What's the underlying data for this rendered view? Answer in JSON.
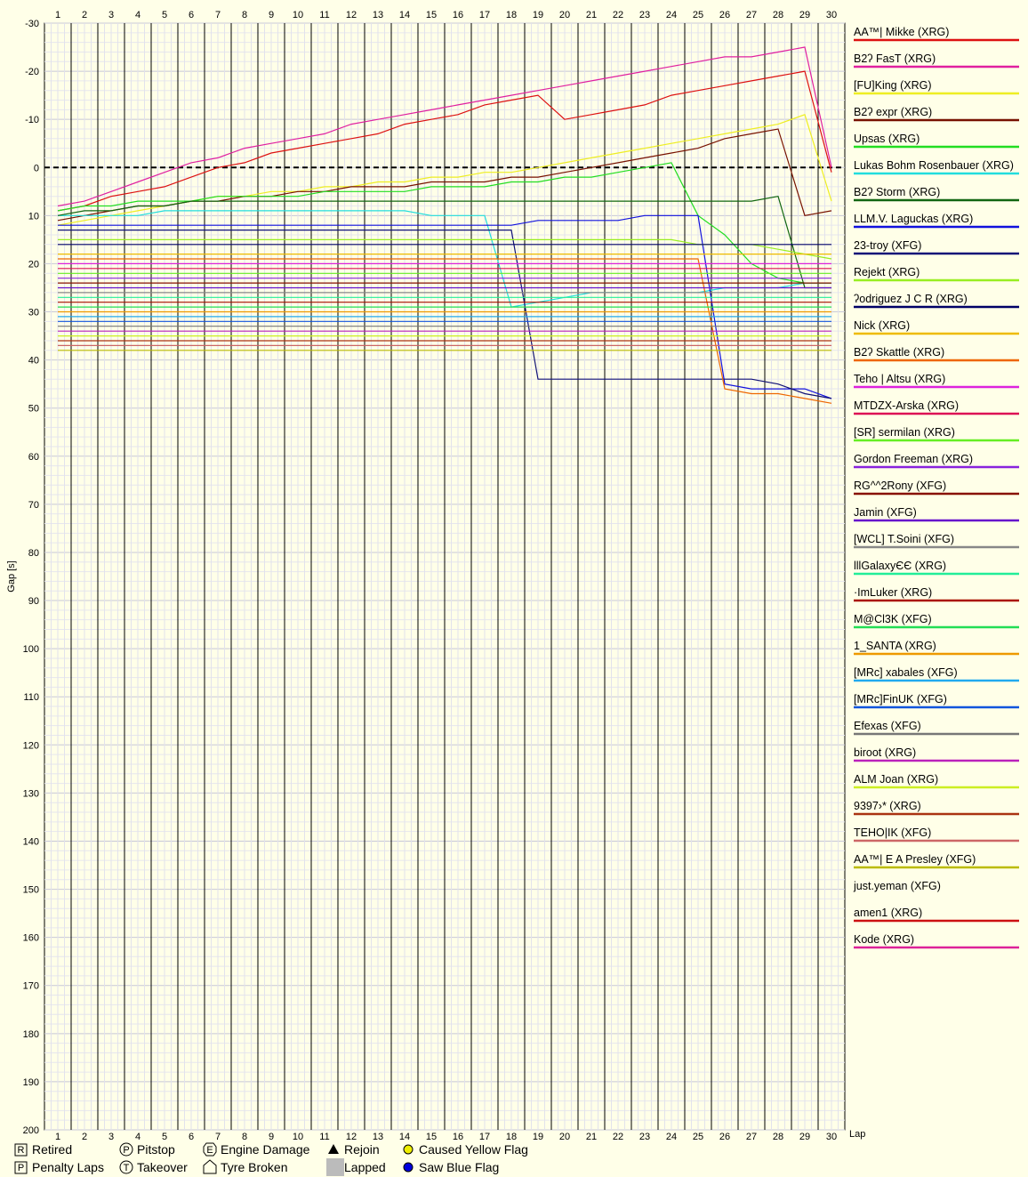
{
  "chart_data": {
    "type": "line",
    "ylabel": "Gap [s]",
    "xlabel": "Lap",
    "x_ticks": [
      "1",
      "2",
      "3",
      "4",
      "5",
      "6",
      "7",
      "8",
      "9",
      "10",
      "11",
      "12",
      "13",
      "14",
      "15",
      "16",
      "17",
      "18",
      "19",
      "20",
      "21",
      "22",
      "23",
      "24",
      "25",
      "26",
      "27",
      "28",
      "29",
      "30"
    ],
    "y_ticks": [
      "-30",
      "-20",
      "-10",
      "0",
      "10",
      "20",
      "30",
      "40",
      "50",
      "60",
      "70",
      "80",
      "90",
      "100",
      "110",
      "120",
      "130",
      "140",
      "150",
      "160",
      "170",
      "180",
      "190",
      "200"
    ],
    "ylim": [
      -30,
      200
    ],
    "xlim": [
      1,
      30
    ],
    "y_inverted": true,
    "grid": true,
    "legend_position": "right",
    "zero_line": "dashed",
    "series": [
      {
        "name": "AA™| Mikke (XRG)",
        "color": "#dd1111",
        "values": [
          9,
          8,
          6,
          5,
          4,
          2,
          0,
          -1,
          -3,
          -4,
          -5,
          -6,
          -7,
          -9,
          -10,
          -11,
          -13,
          -14,
          -15,
          -10,
          -11,
          -12,
          -13,
          -15,
          -16,
          -17,
          -18,
          -19,
          -20,
          1
        ]
      },
      {
        "name": "B2ʔ FasT (XRG)",
        "color": "#e020a0",
        "values": [
          8,
          7,
          5,
          3,
          1,
          -1,
          -2,
          -4,
          -5,
          -6,
          -7,
          -9,
          -10,
          -11,
          -12,
          -13,
          -14,
          -15,
          -16,
          -17,
          -18,
          -19,
          -20,
          -21,
          -22,
          -23,
          -23,
          -24,
          -25,
          0
        ]
      },
      {
        "name": "[FU]King (XRG)",
        "color": "#eeee22",
        "values": [
          12,
          11,
          10,
          9,
          8,
          7,
          6,
          6,
          5,
          5,
          4,
          4,
          3,
          3,
          2,
          2,
          1,
          1,
          0,
          -1,
          -2,
          -3,
          -4,
          -5,
          -6,
          -7,
          -8,
          -9,
          -11,
          7
        ]
      },
      {
        "name": "B2ʔ expr (XRG)",
        "color": "#771100",
        "values": [
          11,
          10,
          9,
          8,
          8,
          7,
          7,
          6,
          6,
          5,
          5,
          4,
          4,
          4,
          3,
          3,
          3,
          2,
          2,
          1,
          0,
          -1,
          -2,
          -3,
          -4,
          -6,
          -7,
          -8,
          10,
          9
        ]
      },
      {
        "name": "Upsas (XRG)",
        "color": "#22dd22",
        "values": [
          9,
          8,
          8,
          7,
          7,
          7,
          6,
          6,
          6,
          6,
          5,
          5,
          5,
          5,
          4,
          4,
          4,
          3,
          3,
          2,
          2,
          1,
          0,
          -1,
          10,
          14,
          20,
          23,
          24,
          24
        ]
      },
      {
        "name": "Lukas Bohm Rosenbauer (XRG)",
        "color": "#22dddd",
        "values": [
          10,
          10,
          10,
          10,
          9,
          9,
          9,
          9,
          9,
          9,
          9,
          9,
          9,
          9,
          10,
          10,
          10,
          29,
          28,
          27,
          26,
          26,
          26,
          26,
          26,
          25,
          25,
          25,
          24,
          24
        ]
      },
      {
        "name": "B2ʔ Storm (XRG)",
        "color": "#116611",
        "values": [
          10,
          9,
          9,
          8,
          8,
          7,
          7,
          7,
          7,
          7,
          7,
          7,
          7,
          7,
          7,
          7,
          7,
          7,
          7,
          7,
          7,
          7,
          7,
          7,
          7,
          7,
          7,
          6,
          25,
          25
        ]
      },
      {
        "name": "LLM.V. Laguckas (XRG)",
        "color": "#1111dd",
        "values": [
          12,
          12,
          12,
          12,
          12,
          12,
          12,
          12,
          12,
          12,
          12,
          12,
          12,
          12,
          12,
          12,
          12,
          12,
          11,
          11,
          11,
          11,
          10,
          10,
          10,
          45,
          46,
          46,
          46,
          48
        ]
      },
      {
        "name": "23-troy (XFG)",
        "color": "#111177",
        "values": [
          13,
          13,
          13,
          13,
          13,
          13,
          13,
          13,
          13,
          13,
          13,
          13,
          13,
          13,
          13,
          13,
          13,
          13,
          44,
          44,
          44,
          44,
          44,
          44,
          44,
          44,
          44,
          45,
          47,
          48
        ]
      },
      {
        "name": "Rejekt (XRG)",
        "color": "#99ee22",
        "values": [
          15,
          15,
          15,
          15,
          15,
          15,
          15,
          15,
          15,
          15,
          15,
          15,
          15,
          15,
          15,
          15,
          15,
          15,
          15,
          15,
          15,
          15,
          15,
          15,
          16,
          16,
          16,
          17,
          18,
          19
        ]
      },
      {
        "name": "ʔodriguez  J C R  (XRG)",
        "color": "#000066",
        "values": [
          16,
          16,
          16,
          16,
          16,
          16,
          16,
          16,
          16,
          16,
          16,
          16,
          16,
          16,
          16,
          16,
          16,
          16,
          16,
          16,
          16,
          16,
          16,
          16,
          16,
          16,
          16,
          16,
          16,
          16
        ]
      },
      {
        "name": "Nick (XRG)",
        "color": "#eebb00",
        "values": [
          18,
          18,
          18,
          18,
          18,
          18,
          18,
          18,
          18,
          18,
          18,
          18,
          18,
          18,
          18,
          18,
          18,
          18,
          18,
          18,
          18,
          18,
          18,
          18,
          18,
          18,
          18,
          18,
          18,
          18
        ]
      },
      {
        "name": "B2ʔ Skattle (XRG)",
        "color": "#ee6600",
        "values": [
          19,
          19,
          19,
          19,
          19,
          19,
          19,
          19,
          19,
          19,
          19,
          19,
          19,
          19,
          19,
          19,
          19,
          19,
          19,
          19,
          19,
          19,
          19,
          19,
          19,
          46,
          47,
          47,
          48,
          49
        ]
      },
      {
        "name": "Teho | Altsu (XRG)",
        "color": "#dd22dd",
        "values": [
          20,
          20,
          20,
          20,
          20,
          20,
          20,
          20,
          20,
          20,
          20,
          20,
          20,
          20,
          20,
          20,
          20,
          20,
          20,
          20,
          20,
          20,
          20,
          20,
          20,
          20,
          20,
          20,
          20,
          20
        ]
      },
      {
        "name": "MTDZX-Arska (XRG)",
        "color": "#dd1155",
        "values": [
          21,
          21,
          21,
          21,
          21,
          21,
          21,
          21,
          21,
          21,
          21,
          21,
          21,
          21,
          21,
          21,
          21,
          21,
          21,
          21,
          21,
          21,
          21,
          21,
          21,
          21,
          21,
          21,
          21,
          21
        ]
      },
      {
        "name": "[SR] sermilan (XRG)",
        "color": "#66ee22",
        "values": [
          22,
          22,
          22,
          22,
          22,
          22,
          22,
          22,
          22,
          22,
          22,
          22,
          22,
          22,
          22,
          22,
          22,
          22,
          22,
          22,
          22,
          22,
          22,
          22,
          22,
          22,
          22,
          22,
          22,
          22
        ]
      },
      {
        "name": "Gordon Freeman (XRG)",
        "color": "#8822dd",
        "values": [
          23,
          23,
          23,
          23,
          23,
          23,
          23,
          23,
          23,
          23,
          23,
          23,
          23,
          23,
          23,
          23,
          23,
          23,
          23,
          23,
          23,
          23,
          23,
          23,
          23,
          23,
          23,
          23,
          23,
          23
        ]
      },
      {
        "name": "RG^^2Rony (XFG)",
        "color": "#881100",
        "values": [
          24,
          24,
          24,
          24,
          24,
          24,
          24,
          24,
          24,
          24,
          24,
          24,
          24,
          24,
          24,
          24,
          24,
          24,
          24,
          24,
          24,
          24,
          24,
          24,
          24,
          24,
          24,
          24,
          24,
          24
        ]
      },
      {
        "name": "Jamin (XFG)",
        "color": "#6611cc",
        "values": [
          25,
          25,
          25,
          25,
          25,
          25,
          25,
          25,
          25,
          25,
          25,
          25,
          25,
          25,
          25,
          25,
          25,
          25,
          25,
          25,
          25,
          25,
          25,
          25,
          25,
          25,
          25,
          25,
          25,
          25
        ]
      },
      {
        "name": "[WCL] T.Soini (XFG)",
        "color": "#888888",
        "values": [
          26,
          26,
          26,
          26,
          26,
          26,
          26,
          26,
          26,
          26,
          26,
          26,
          26,
          26,
          26,
          26,
          26,
          26,
          26,
          26,
          26,
          26,
          26,
          26,
          26,
          26,
          26,
          26,
          26,
          26
        ]
      },
      {
        "name": "lllGalaxyЄЄ (XRG)",
        "color": "#22ee99",
        "values": [
          27,
          27,
          27,
          27,
          27,
          27,
          27,
          27,
          27,
          27,
          27,
          27,
          27,
          27,
          27,
          27,
          27,
          27,
          27,
          27,
          27,
          27,
          27,
          27,
          27,
          27,
          27,
          27,
          27,
          27
        ]
      },
      {
        "name": "·ImLuker (XRG)",
        "color": "#aa1100",
        "values": [
          28,
          28,
          28,
          28,
          28,
          28,
          28,
          28,
          28,
          28,
          28,
          28,
          28,
          28,
          28,
          28,
          28,
          28,
          28,
          28,
          28,
          28,
          28,
          28,
          28,
          28,
          28,
          28,
          28,
          28
        ]
      },
      {
        "name": "M@Cl3K (XFG)",
        "color": "#22dd55",
        "values": [
          29,
          29,
          29,
          29,
          29,
          29,
          29,
          29,
          29,
          29,
          29,
          29,
          29,
          29,
          29,
          29,
          29,
          29,
          29,
          29,
          29,
          29,
          29,
          29,
          29,
          29,
          29,
          29,
          29,
          29
        ]
      },
      {
        "name": "1_SANTA (XRG)",
        "color": "#ee9900",
        "values": [
          30,
          30,
          30,
          30,
          30,
          30,
          30,
          30,
          30,
          30,
          30,
          30,
          30,
          30,
          30,
          30,
          30,
          30,
          30,
          30,
          30,
          30,
          30,
          30,
          30,
          30,
          30,
          30,
          30,
          30
        ]
      },
      {
        "name": "[MRc] xabales (XFG)",
        "color": "#22aaee",
        "values": [
          31,
          31,
          31,
          31,
          31,
          31,
          31,
          31,
          31,
          31,
          31,
          31,
          31,
          31,
          31,
          31,
          31,
          31,
          31,
          31,
          31,
          31,
          31,
          31,
          31,
          31,
          31,
          31,
          31,
          31
        ]
      },
      {
        "name": "[MRc]FinUK (XFG)",
        "color": "#1155dd",
        "values": [
          32,
          32,
          32,
          32,
          32,
          32,
          32,
          32,
          32,
          32,
          32,
          32,
          32,
          32,
          32,
          32,
          32,
          32,
          32,
          32,
          32,
          32,
          32,
          32,
          32,
          32,
          32,
          32,
          32,
          32
        ]
      },
      {
        "name": "Efexas (XFG)",
        "color": "#777777",
        "values": [
          33,
          33,
          33,
          33,
          33,
          33,
          33,
          33,
          33,
          33,
          33,
          33,
          33,
          33,
          33,
          33,
          33,
          33,
          33,
          33,
          33,
          33,
          33,
          33,
          33,
          33,
          33,
          33,
          33,
          33
        ]
      },
      {
        "name": "biroot (XRG)",
        "color": "#bb22bb",
        "values": [
          34,
          34,
          34,
          34,
          34,
          34,
          34,
          34,
          34,
          34,
          34,
          34,
          34,
          34,
          34,
          34,
          34,
          34,
          34,
          34,
          34,
          34,
          34,
          34,
          34,
          34,
          34,
          34,
          34,
          34
        ]
      },
      {
        "name": "ALM Joan (XRG)",
        "color": "#ccee22",
        "values": [
          35,
          35,
          35,
          35,
          35,
          35,
          35,
          35,
          35,
          35,
          35,
          35,
          35,
          35,
          35,
          35,
          35,
          35,
          35,
          35,
          35,
          35,
          35,
          35,
          35,
          35,
          35,
          35,
          35,
          35
        ]
      },
      {
        "name": "9397›* (XRG)",
        "color": "#aa3311",
        "values": [
          36,
          36,
          36,
          36,
          36,
          36,
          36,
          36,
          36,
          36,
          36,
          36,
          36,
          36,
          36,
          36,
          36,
          36,
          36,
          36,
          36,
          36,
          36,
          36,
          36,
          36,
          36,
          36,
          36,
          36
        ]
      },
      {
        "name": "TEHO|IK (XFG)",
        "color": "#cc6666",
        "values": [
          37,
          37,
          37,
          37,
          37,
          37,
          37,
          37,
          37,
          37,
          37,
          37,
          37,
          37,
          37,
          37,
          37,
          37,
          37,
          37,
          37,
          37,
          37,
          37,
          37,
          37,
          37,
          37,
          37,
          37
        ]
      },
      {
        "name": "AA™| E A Presley (XFG)",
        "color": "#bbbb00",
        "values": [
          38,
          38,
          38,
          38,
          38,
          38,
          38,
          38,
          38,
          38,
          38,
          38,
          38,
          38,
          38,
          38,
          38,
          38,
          38,
          38,
          38,
          38,
          38,
          38,
          38,
          38,
          38,
          38,
          38,
          38
        ]
      },
      {
        "name": "just.yeman (XFG)",
        "color": "#ffffe8",
        "values": []
      },
      {
        "name": "amen1 (XRG)",
        "color": "#cc1111",
        "values": []
      },
      {
        "name": "Kode (XRG)",
        "color": "#dd2299",
        "values": []
      }
    ],
    "key_items": [
      {
        "symbol": "R",
        "label": "Retired",
        "shape": "square"
      },
      {
        "symbol": "P",
        "label": "Pitstop",
        "shape": "circle"
      },
      {
        "symbol": "E",
        "label": "Engine Damage",
        "shape": "octagon"
      },
      {
        "symbol": "▲",
        "label": "Rejoin",
        "shape": "triangle"
      },
      {
        "symbol": "●",
        "label": "Caused Yellow Flag",
        "shape": "yellow-dot"
      },
      {
        "symbol": "P",
        "label": "Penalty Laps",
        "shape": "square"
      },
      {
        "symbol": "T",
        "label": "Takeover",
        "shape": "circle"
      },
      {
        "symbol": "⌂",
        "label": "Tyre Broken",
        "shape": "house"
      },
      {
        "symbol": "■",
        "label": "Lapped",
        "shape": "gray-box"
      },
      {
        "symbol": "●",
        "label": "Saw Blue Flag",
        "shape": "blue-dot"
      }
    ]
  }
}
